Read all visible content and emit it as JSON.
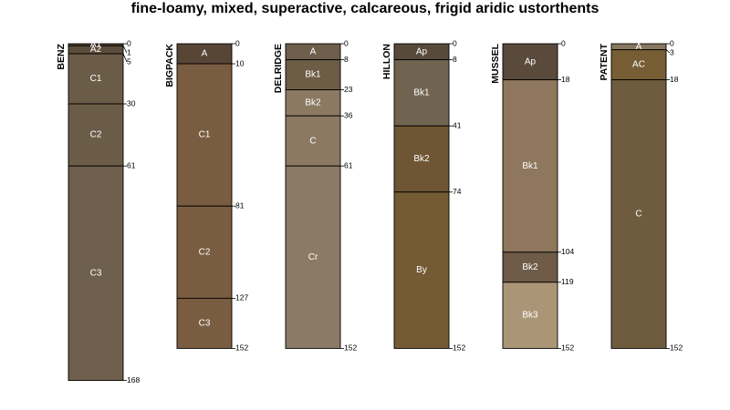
{
  "title": "fine-loamy, mixed, superactive, calcareous, frigid aridic ustorthents",
  "depth_max": 168,
  "profiles": [
    {
      "name": "BENZ",
      "horizons": [
        {
          "name": "A1",
          "top": 0,
          "bottom": 1,
          "color": "#5a4a38"
        },
        {
          "name": "A2",
          "top": 1,
          "bottom": 5,
          "color": "#5c4d3b"
        },
        {
          "name": "C1",
          "top": 5,
          "bottom": 30,
          "color": "#6b5c48"
        },
        {
          "name": "C2",
          "top": 30,
          "bottom": 61,
          "color": "#6b5c48"
        },
        {
          "name": "C3",
          "top": 61,
          "bottom": 168,
          "color": "#6f604d"
        }
      ]
    },
    {
      "name": "BIGPACK",
      "horizons": [
        {
          "name": "A",
          "top": 0,
          "bottom": 10,
          "color": "#574535"
        },
        {
          "name": "C1",
          "top": 10,
          "bottom": 81,
          "color": "#7a5c40"
        },
        {
          "name": "C2",
          "top": 81,
          "bottom": 127,
          "color": "#7a5c40"
        },
        {
          "name": "C3",
          "top": 127,
          "bottom": 152,
          "color": "#7a5c40"
        }
      ]
    },
    {
      "name": "DELRIDGE",
      "horizons": [
        {
          "name": "A",
          "top": 0,
          "bottom": 8,
          "color": "#6d5f4c"
        },
        {
          "name": "Bk1",
          "top": 8,
          "bottom": 23,
          "color": "#6d5c46"
        },
        {
          "name": "Bk2",
          "top": 23,
          "bottom": 36,
          "color": "#8b7a61"
        },
        {
          "name": "C",
          "top": 36,
          "bottom": 61,
          "color": "#8b7a61"
        },
        {
          "name": "Cr",
          "top": 61,
          "bottom": 152,
          "color": "#8b7a65"
        }
      ]
    },
    {
      "name": "HILLON",
      "horizons": [
        {
          "name": "Ap",
          "top": 0,
          "bottom": 8,
          "color": "#574a3b"
        },
        {
          "name": "Bk1",
          "top": 8,
          "bottom": 41,
          "color": "#706450"
        },
        {
          "name": "Bk2",
          "top": 41,
          "bottom": 74,
          "color": "#6e5534"
        },
        {
          "name": "By",
          "top": 74,
          "bottom": 152,
          "color": "#755b34"
        }
      ]
    },
    {
      "name": "MUSSEL",
      "horizons": [
        {
          "name": "Ap",
          "top": 0,
          "bottom": 18,
          "color": "#5a4a3b"
        },
        {
          "name": "Bk1",
          "top": 18,
          "bottom": 104,
          "color": "#8e775c"
        },
        {
          "name": "Bk2",
          "top": 104,
          "bottom": 119,
          "color": "#6e5b48"
        },
        {
          "name": "Bk3",
          "top": 119,
          "bottom": 152,
          "color": "#ab9577"
        }
      ]
    },
    {
      "name": "PATENT",
      "horizons": [
        {
          "name": "A",
          "top": 0,
          "bottom": 3,
          "color": "#877660"
        },
        {
          "name": "AC",
          "top": 3,
          "bottom": 18,
          "color": "#775d34"
        },
        {
          "name": "C",
          "top": 18,
          "bottom": 152,
          "color": "#6f5c3f"
        }
      ]
    }
  ]
}
